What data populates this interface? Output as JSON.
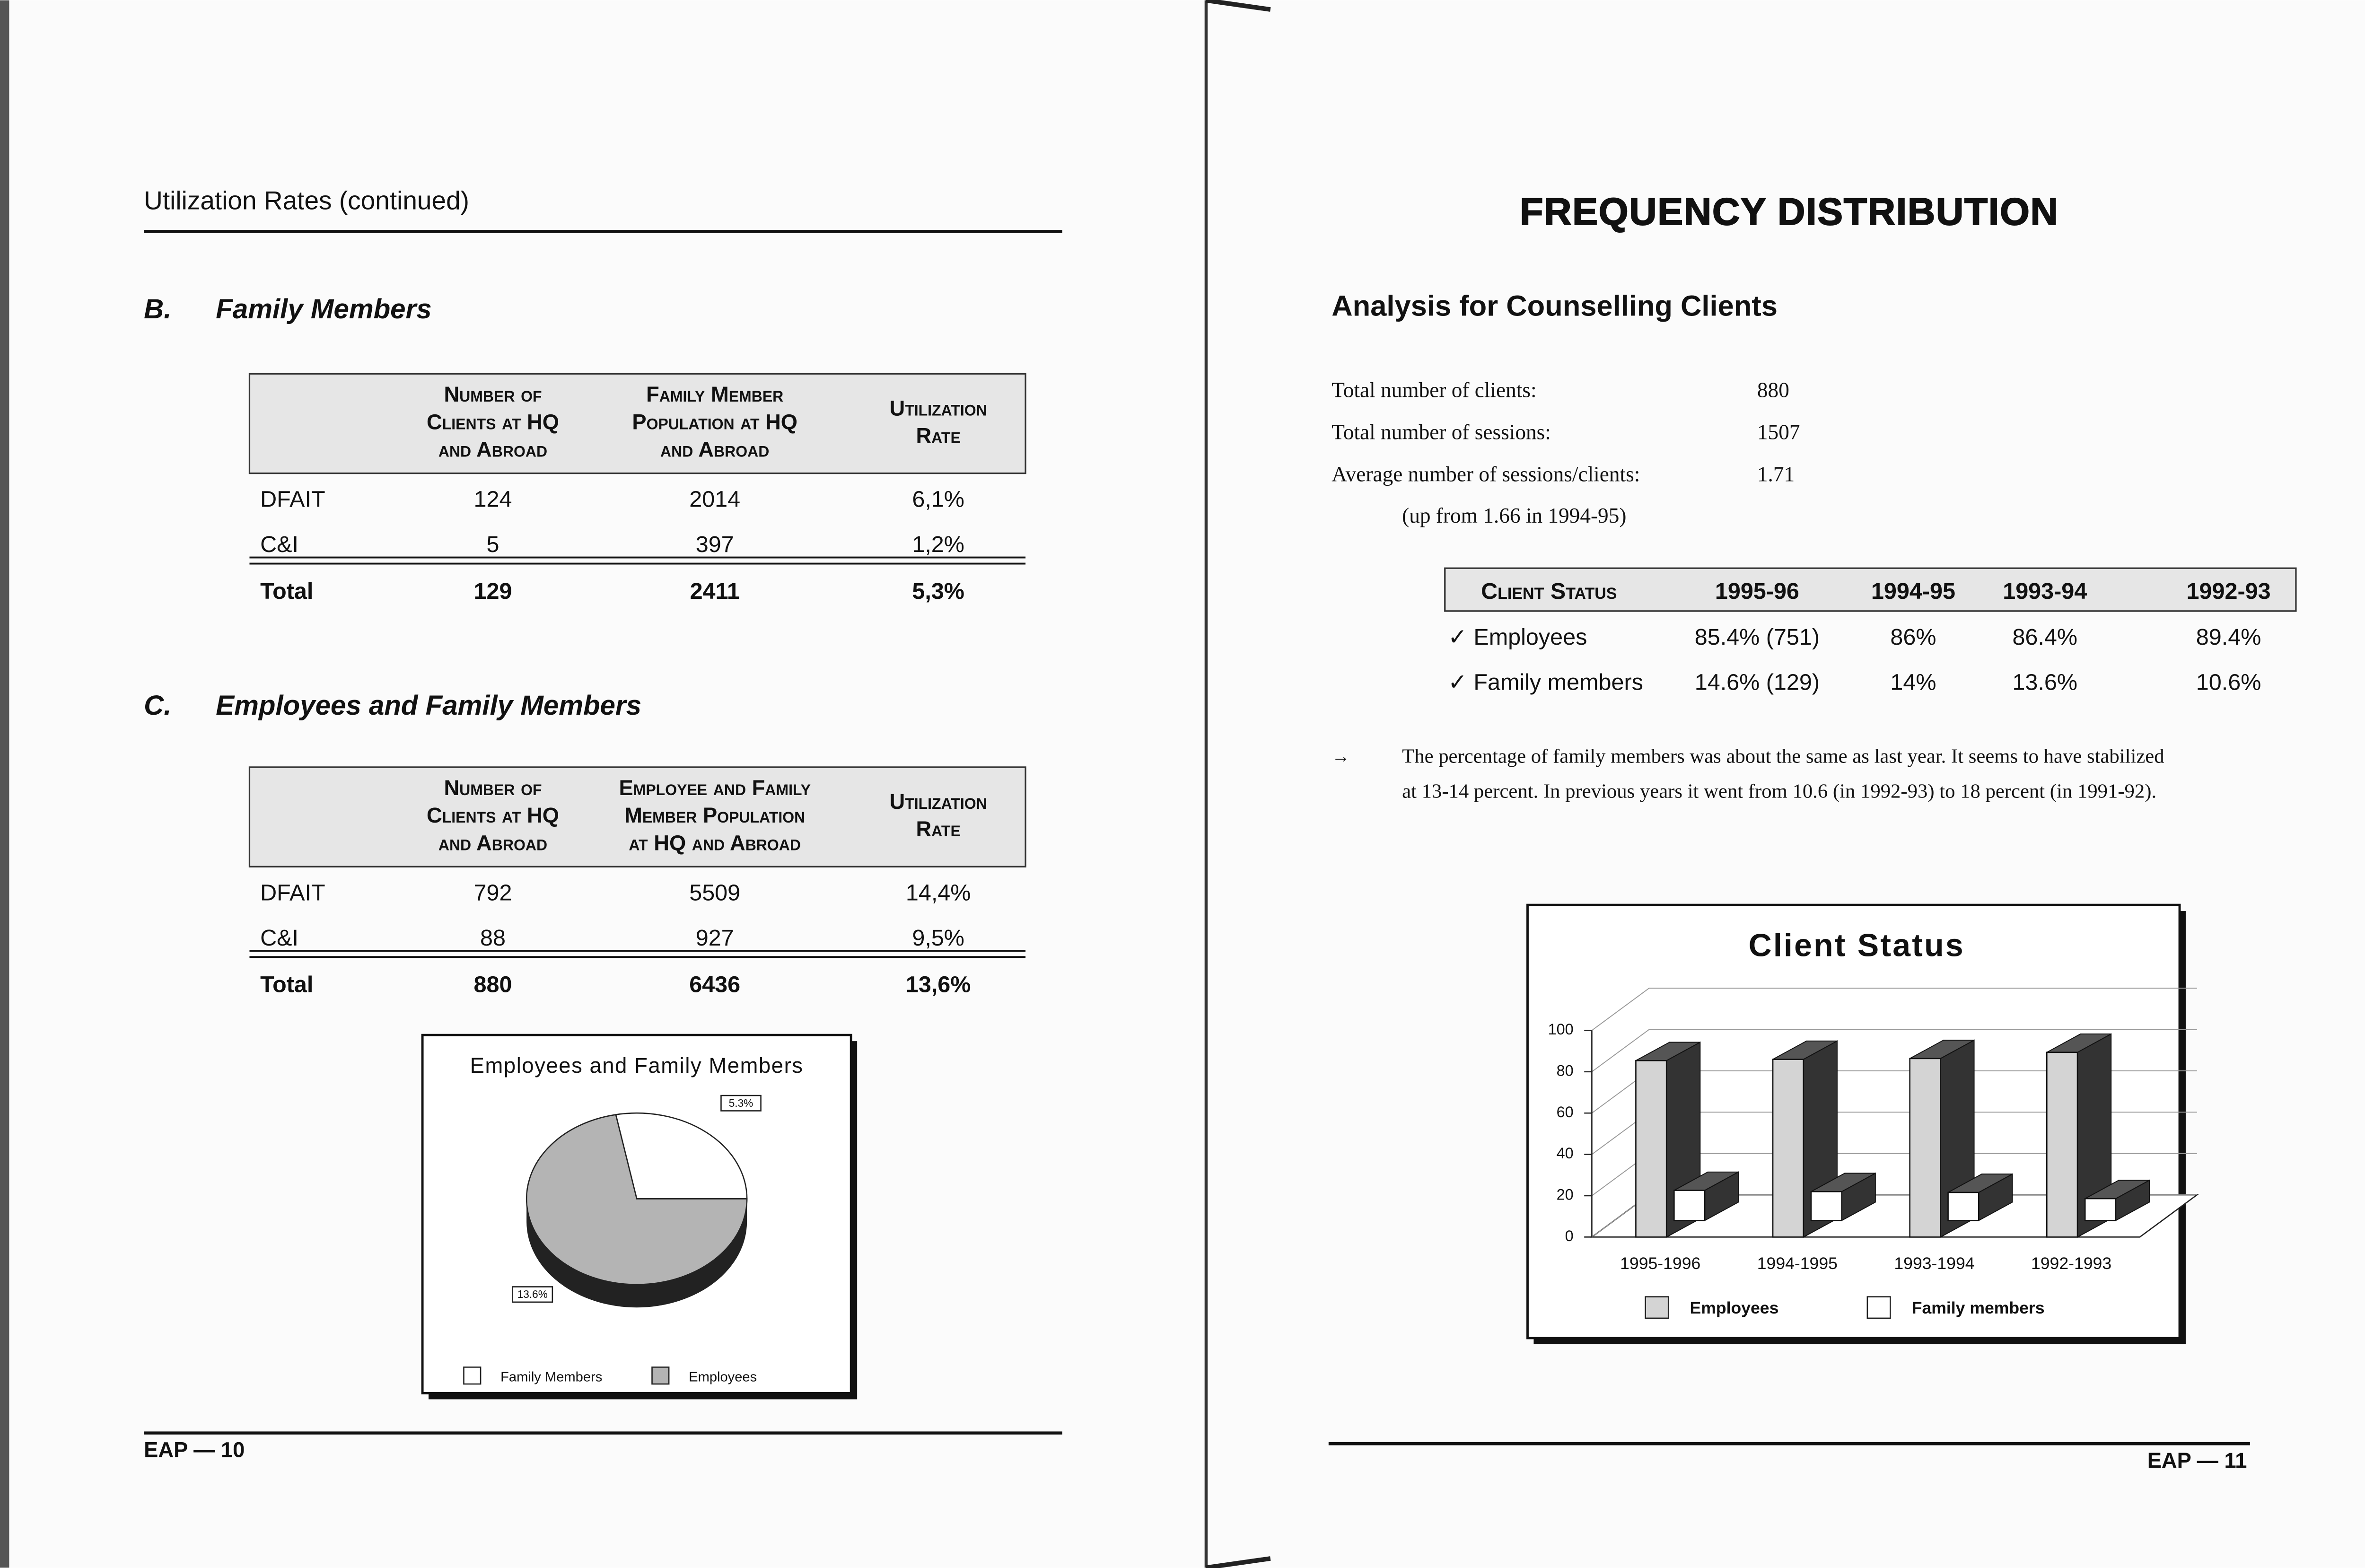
{
  "left_page": {
    "header": "Utilization Rates (continued)",
    "section_b": {
      "letter": "B.",
      "title": "Family Members",
      "table": {
        "header": [
          [
            "Number of",
            "Clients at HQ",
            "and Abroad"
          ],
          [
            "Family Member",
            "Population at HQ",
            "and Abroad"
          ],
          [
            "Utilization",
            "Rate"
          ]
        ],
        "rows": [
          [
            "DFAIT",
            "124",
            "2014",
            "6,1%"
          ],
          [
            "C&I",
            "5",
            "397",
            "1,2%"
          ],
          [
            "Total",
            "129",
            "2411",
            "5,3%"
          ]
        ]
      }
    },
    "section_c": {
      "letter": "C.",
      "title": "Employees and Family Members",
      "table": {
        "header": [
          [
            "Number of",
            "Clients at HQ",
            "and Abroad"
          ],
          [
            "Employee and Family",
            "Member Population",
            "at HQ and Abroad"
          ],
          [
            "Utilization",
            "Rate"
          ]
        ],
        "rows": [
          [
            "DFAIT",
            "792",
            "5509",
            "14,4%"
          ],
          [
            "C&I",
            "88",
            "927",
            "9,5%"
          ],
          [
            "Total",
            "880",
            "6436",
            "13,6%"
          ]
        ]
      }
    },
    "footer": "EAP — 10"
  },
  "right_page": {
    "title": "FREQUENCY DISTRIBUTION",
    "subtitle": "Analysis for Counselling Clients",
    "stats": [
      {
        "label": "Total number of clients:",
        "value": "880"
      },
      {
        "label": "Total number of sessions:",
        "value": "1507"
      },
      {
        "label": "Average number of sessions/clients:",
        "value": "1.71"
      }
    ],
    "stats_note": "(up from 1.66 in 1994-95)",
    "table": {
      "header": [
        "Client Status",
        "1995-96",
        "1994-95",
        "1993-94",
        "1992-93"
      ],
      "rows": [
        [
          "✓ Employees",
          "85.4% (751)",
          "86%",
          "86.4%",
          "89.4%"
        ],
        [
          "✓ Family members",
          "14.6% (129)",
          "14%",
          "13.6%",
          "10.6%"
        ]
      ]
    },
    "note": {
      "marker": "→",
      "lines": [
        "The percentage of family members was about the same as last year. It seems to have stabilized",
        "at 13-14 percent. In previous years it went from 10.6 (in 1992-93) to 18 percent (in 1991-92)."
      ]
    },
    "footer": "EAP — 11"
  },
  "chart_data": [
    {
      "type": "pie",
      "title": "Employees and Family Members",
      "categories": [
        "Family Members",
        "Employees"
      ],
      "values": [
        5.3,
        13.6
      ],
      "value_labels": [
        "5.3%",
        "13.6%"
      ],
      "colors": [
        "#ffffff",
        "#b4b4b4"
      ],
      "legend": "bottom"
    },
    {
      "type": "bar3d",
      "title": "Client Status",
      "categories": [
        "1995-1996",
        "1994-1995",
        "1993-1994",
        "1992-1993"
      ],
      "series": [
        {
          "name": "Employees",
          "color": "#d4d4d4",
          "values": [
            85.4,
            86,
            86.4,
            89.4
          ]
        },
        {
          "name": "Family members",
          "color": "#ffffff",
          "values": [
            14.6,
            14,
            13.6,
            10.6
          ]
        }
      ],
      "ylim": [
        0,
        100
      ],
      "yticks": [
        0,
        20,
        40,
        60,
        80,
        100
      ],
      "grid": true,
      "legend": "bottom"
    }
  ]
}
